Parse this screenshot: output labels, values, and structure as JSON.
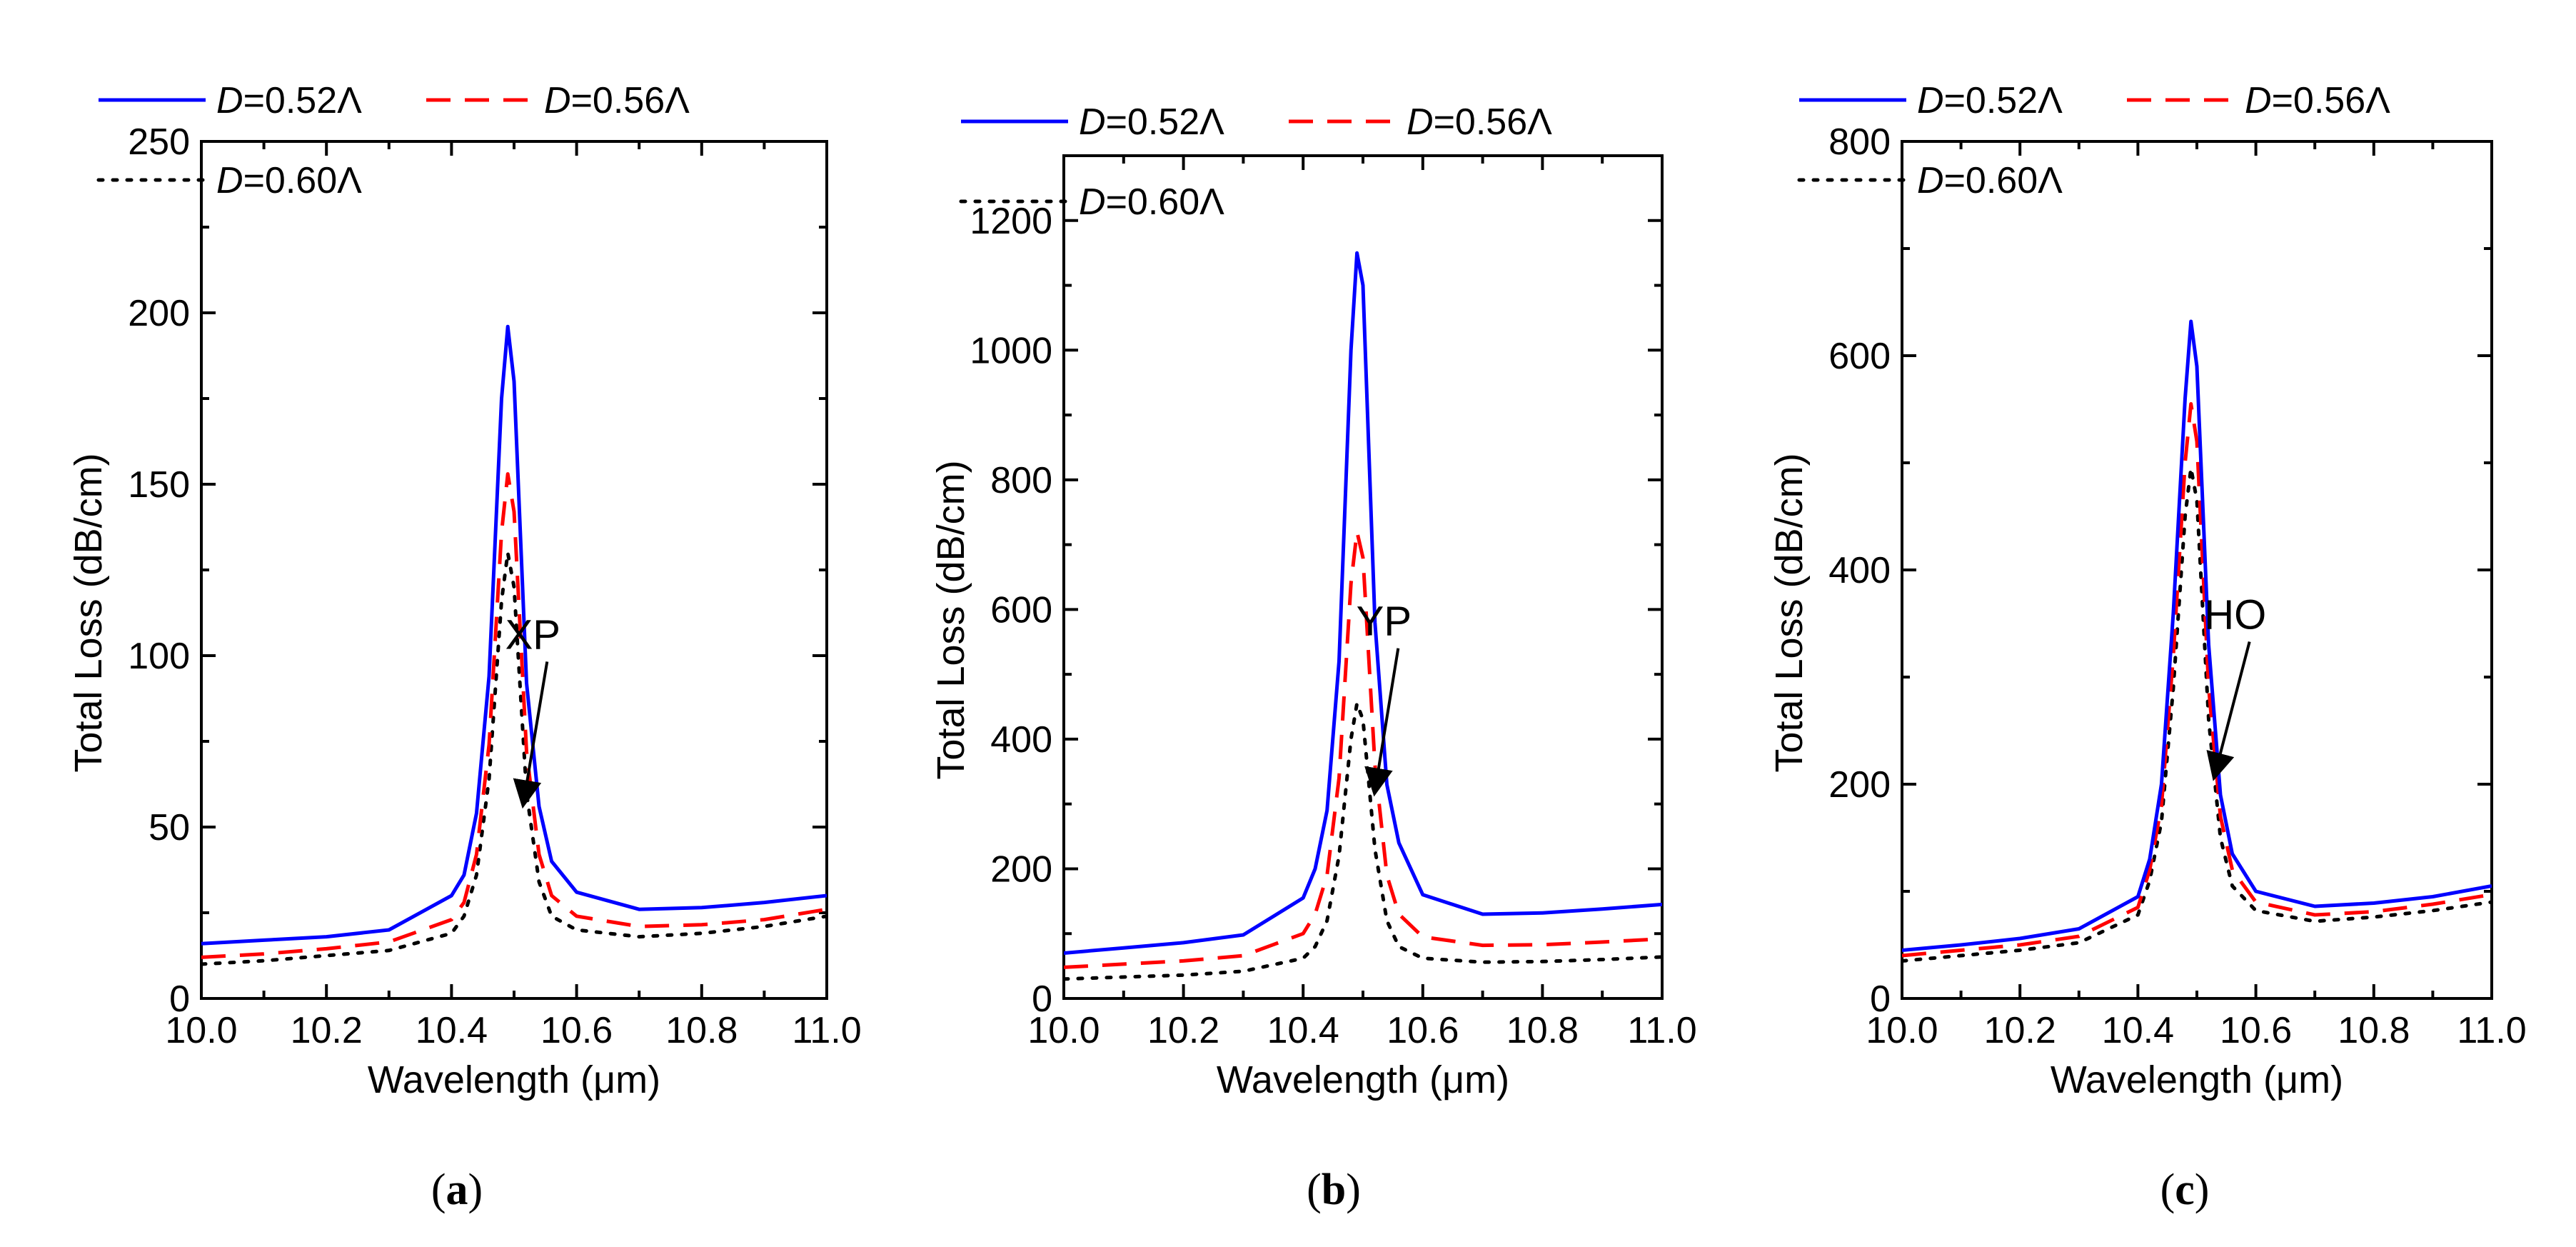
{
  "chart_data": [
    {
      "type": "line",
      "panel": "a",
      "caption_letter": "a",
      "xlabel": "Wavelength (μm)",
      "ylabel": "Total Loss (dB/cm)",
      "xlim": [
        10.0,
        11.0
      ],
      "ylim": [
        0,
        250
      ],
      "xticks": [
        10.0,
        10.2,
        10.4,
        10.6,
        10.8,
        11.0
      ],
      "xtick_labels": [
        "10.0",
        "10.2",
        "10.4",
        "10.6",
        "10.8",
        "11.0"
      ],
      "yticks": [
        0,
        50,
        100,
        150,
        200,
        250
      ],
      "ytick_labels": [
        "0",
        "50",
        "100",
        "150",
        "200",
        "250"
      ],
      "annotation": {
        "text": "XP",
        "text_at": [
          10.53,
          102
        ],
        "arrow_to": [
          10.515,
          57
        ]
      },
      "series": [
        {
          "name": "D=0.52Λ",
          "color": "#0000ff",
          "dash": "solid",
          "x": [
            10.0,
            10.1,
            10.2,
            10.3,
            10.4,
            10.42,
            10.44,
            10.46,
            10.48,
            10.49,
            10.5,
            10.52,
            10.54,
            10.56,
            10.6,
            10.7,
            10.8,
            10.9,
            11.0
          ],
          "y": [
            16,
            17,
            18,
            20,
            30,
            36,
            54,
            94,
            175,
            196,
            180,
            92,
            56,
            40,
            31,
            26,
            26.5,
            28,
            30
          ]
        },
        {
          "name": "D=0.56Λ",
          "color": "#ff0000",
          "dash": "dashed",
          "x": [
            10.0,
            10.1,
            10.2,
            10.3,
            10.4,
            10.42,
            10.44,
            10.46,
            10.48,
            10.49,
            10.5,
            10.52,
            10.54,
            10.56,
            10.6,
            10.7,
            10.8,
            10.9,
            11.0
          ],
          "y": [
            12,
            13,
            14.5,
            16.5,
            23,
            28,
            42,
            74,
            136,
            153,
            142,
            72,
            42,
            30,
            24,
            21,
            21.5,
            23,
            26
          ]
        },
        {
          "name": "D=0.60Λ",
          "color": "#000000",
          "dash": "dotted",
          "x": [
            10.0,
            10.1,
            10.2,
            10.3,
            10.4,
            10.42,
            10.44,
            10.46,
            10.48,
            10.49,
            10.5,
            10.52,
            10.54,
            10.56,
            10.6,
            10.7,
            10.8,
            10.9,
            11.0
          ],
          "y": [
            10,
            11,
            12.5,
            14,
            19,
            24,
            36,
            64,
            116,
            130,
            120,
            60,
            34,
            24,
            20,
            18,
            19,
            21,
            24
          ]
        }
      ]
    },
    {
      "type": "line",
      "panel": "b",
      "caption_letter": "b",
      "xlabel": "Wavelength (μm)",
      "ylabel": "Total Loss (dB/cm)",
      "xlim": [
        10.0,
        11.0
      ],
      "ylim": [
        0,
        1300
      ],
      "xticks": [
        10.0,
        10.2,
        10.4,
        10.6,
        10.8,
        11.0
      ],
      "xtick_labels": [
        "10.0",
        "10.2",
        "10.4",
        "10.6",
        "10.8",
        "11.0"
      ],
      "yticks": [
        0,
        200,
        400,
        600,
        800,
        1000,
        1200
      ],
      "ytick_labels": [
        "0",
        "200",
        "400",
        "600",
        "800",
        "1000",
        "1200"
      ],
      "annotation": {
        "text": "YP",
        "text_at": [
          10.535,
          560
        ],
        "arrow_to": [
          10.52,
          320
        ]
      },
      "series": [
        {
          "name": "D=0.52Λ",
          "color": "#0000ff",
          "dash": "solid",
          "x": [
            10.0,
            10.1,
            10.2,
            10.3,
            10.4,
            10.42,
            10.44,
            10.46,
            10.48,
            10.49,
            10.5,
            10.52,
            10.54,
            10.56,
            10.6,
            10.7,
            10.8,
            10.9,
            11.0
          ],
          "y": [
            70,
            78,
            86,
            98,
            155,
            200,
            290,
            520,
            1000,
            1150,
            1100,
            580,
            330,
            240,
            160,
            130,
            132,
            138,
            145
          ]
        },
        {
          "name": "D=0.56Λ",
          "color": "#ff0000",
          "dash": "dashed",
          "x": [
            10.0,
            10.1,
            10.2,
            10.3,
            10.4,
            10.42,
            10.44,
            10.46,
            10.48,
            10.49,
            10.5,
            10.52,
            10.54,
            10.56,
            10.6,
            10.7,
            10.8,
            10.9,
            11.0
          ],
          "y": [
            48,
            53,
            58,
            66,
            100,
            130,
            190,
            340,
            640,
            720,
            680,
            360,
            190,
            130,
            95,
            82,
            83,
            87,
            92
          ]
        },
        {
          "name": "D=0.60Λ",
          "color": "#000000",
          "dash": "dotted",
          "x": [
            10.0,
            10.1,
            10.2,
            10.3,
            10.4,
            10.42,
            10.44,
            10.46,
            10.48,
            10.49,
            10.5,
            10.52,
            10.54,
            10.56,
            10.6,
            10.7,
            10.8,
            10.9,
            11.0
          ],
          "y": [
            30,
            33,
            36,
            42,
            62,
            80,
            120,
            220,
            400,
            455,
            430,
            230,
            120,
            80,
            62,
            56,
            57,
            60,
            64
          ]
        }
      ]
    },
    {
      "type": "line",
      "panel": "c",
      "caption_letter": "c",
      "xlabel": "Wavelength (μm)",
      "ylabel": "Total Loss (dB/cm)",
      "xlim": [
        10.0,
        11.0
      ],
      "ylim": [
        0,
        800
      ],
      "xticks": [
        10.0,
        10.2,
        10.4,
        10.6,
        10.8,
        11.0
      ],
      "xtick_labels": [
        "10.0",
        "10.2",
        "10.4",
        "10.6",
        "10.8",
        "11.0"
      ],
      "yticks": [
        0,
        200,
        400,
        600,
        800
      ],
      "ytick_labels": [
        "0",
        "200",
        "400",
        "600",
        "800"
      ],
      "annotation": {
        "text": "HO",
        "text_at": [
          10.565,
          345
        ],
        "arrow_to": [
          10.53,
          208
        ]
      },
      "series": [
        {
          "name": "D=0.52Λ",
          "color": "#0000ff",
          "dash": "solid",
          "x": [
            10.0,
            10.1,
            10.2,
            10.3,
            10.4,
            10.42,
            10.44,
            10.46,
            10.48,
            10.49,
            10.5,
            10.52,
            10.54,
            10.56,
            10.6,
            10.7,
            10.8,
            10.9,
            11.0
          ],
          "y": [
            45,
            50,
            56,
            65,
            95,
            130,
            200,
            360,
            560,
            632,
            590,
            330,
            190,
            135,
            100,
            86,
            89,
            95,
            105
          ]
        },
        {
          "name": "D=0.56Λ",
          "color": "#ff0000",
          "dash": "dashed",
          "x": [
            10.0,
            10.1,
            10.2,
            10.3,
            10.4,
            10.42,
            10.44,
            10.46,
            10.48,
            10.49,
            10.5,
            10.52,
            10.54,
            10.56,
            10.6,
            10.7,
            10.8,
            10.9,
            11.0
          ],
          "y": [
            40,
            45,
            50,
            58,
            85,
            120,
            180,
            320,
            500,
            555,
            520,
            290,
            170,
            120,
            90,
            78,
            81,
            88,
            97
          ]
        },
        {
          "name": "D=0.60Λ",
          "color": "#000000",
          "dash": "dotted",
          "x": [
            10.0,
            10.1,
            10.2,
            10.3,
            10.4,
            10.42,
            10.44,
            10.46,
            10.48,
            10.49,
            10.5,
            10.52,
            10.54,
            10.56,
            10.6,
            10.7,
            10.8,
            10.9,
            11.0
          ],
          "y": [
            35,
            40,
            45,
            52,
            78,
            110,
            165,
            290,
            450,
            495,
            465,
            260,
            150,
            105,
            82,
            72,
            76,
            82,
            90
          ]
        }
      ]
    }
  ]
}
